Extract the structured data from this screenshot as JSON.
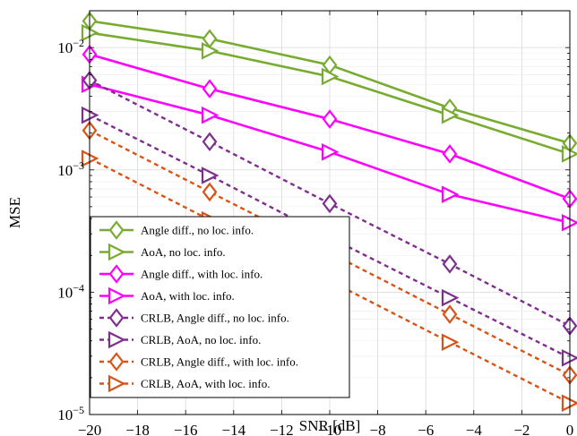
{
  "chart_data": {
    "type": "line",
    "xlabel": "SNR [dB]",
    "ylabel": "MSE",
    "xlim": [
      -20,
      0
    ],
    "ylim": [
      1e-05,
      0.02
    ],
    "yscale": "log",
    "grid": true,
    "legend_position": "bottom-left",
    "x_ticks": [
      -20,
      -18,
      -16,
      -14,
      -12,
      -10,
      -8,
      -6,
      -4,
      -2,
      0
    ],
    "x_tick_labels": [
      "−20",
      "−18",
      "−16",
      "−14",
      "−12",
      "−10",
      "−8",
      "−6",
      "−4",
      "−2",
      "0"
    ],
    "y_ticks": [
      {
        "value": 1e-05,
        "base": "10",
        "exp": "−5"
      },
      {
        "value": 0.0001,
        "base": "10",
        "exp": "−4"
      },
      {
        "value": 0.001,
        "base": "10",
        "exp": "−3"
      },
      {
        "value": 0.01,
        "base": "10",
        "exp": "−2"
      }
    ],
    "x": [
      -20,
      -15,
      -10,
      -5,
      0
    ],
    "series": [
      {
        "name": "Angle diff., no loc. info.",
        "color": "#77ac30",
        "dash": "solid",
        "marker": "diamond",
        "values": [
          0.0165,
          0.0118,
          0.0072,
          0.0032,
          0.00165
        ]
      },
      {
        "name": "AoA, no loc. info.",
        "color": "#77ac30",
        "dash": "solid",
        "marker": "triangle-right",
        "values": [
          0.0132,
          0.0094,
          0.0058,
          0.0028,
          0.00135
        ]
      },
      {
        "name": "Angle diff., with loc. info.",
        "color": "#ff00ff",
        "dash": "solid",
        "marker": "diamond",
        "values": [
          0.0088,
          0.0046,
          0.0026,
          0.00135,
          0.00058
        ]
      },
      {
        "name": "AoA, with loc. info.",
        "color": "#ff00ff",
        "dash": "solid",
        "marker": "triangle-right",
        "values": [
          0.005,
          0.0028,
          0.0014,
          0.00063,
          0.00037
        ]
      },
      {
        "name": "CRLB, Angle diff., no loc. info.",
        "color": "#7e2f8e",
        "dash": "dashed",
        "marker": "diamond",
        "values": [
          0.0054,
          0.0017,
          0.00053,
          0.00017,
          5.3e-05
        ]
      },
      {
        "name": "CRLB, AoA, no loc. info.",
        "color": "#7e2f8e",
        "dash": "dashed",
        "marker": "triangle-right",
        "values": [
          0.0028,
          0.0009,
          0.00028,
          9e-05,
          2.9e-05
        ]
      },
      {
        "name": "CRLB, Angle diff., with loc. info.",
        "color": "#d95319",
        "dash": "dashed",
        "marker": "diamond",
        "values": [
          0.0021,
          0.00066,
          0.00021,
          6.6e-05,
          2.1e-05
        ]
      },
      {
        "name": "CRLB, AoA, with loc. info.",
        "color": "#d95319",
        "dash": "dashed",
        "marker": "triangle-right",
        "values": [
          0.00124,
          0.00039,
          0.000124,
          3.9e-05,
          1.24e-05
        ]
      }
    ]
  }
}
